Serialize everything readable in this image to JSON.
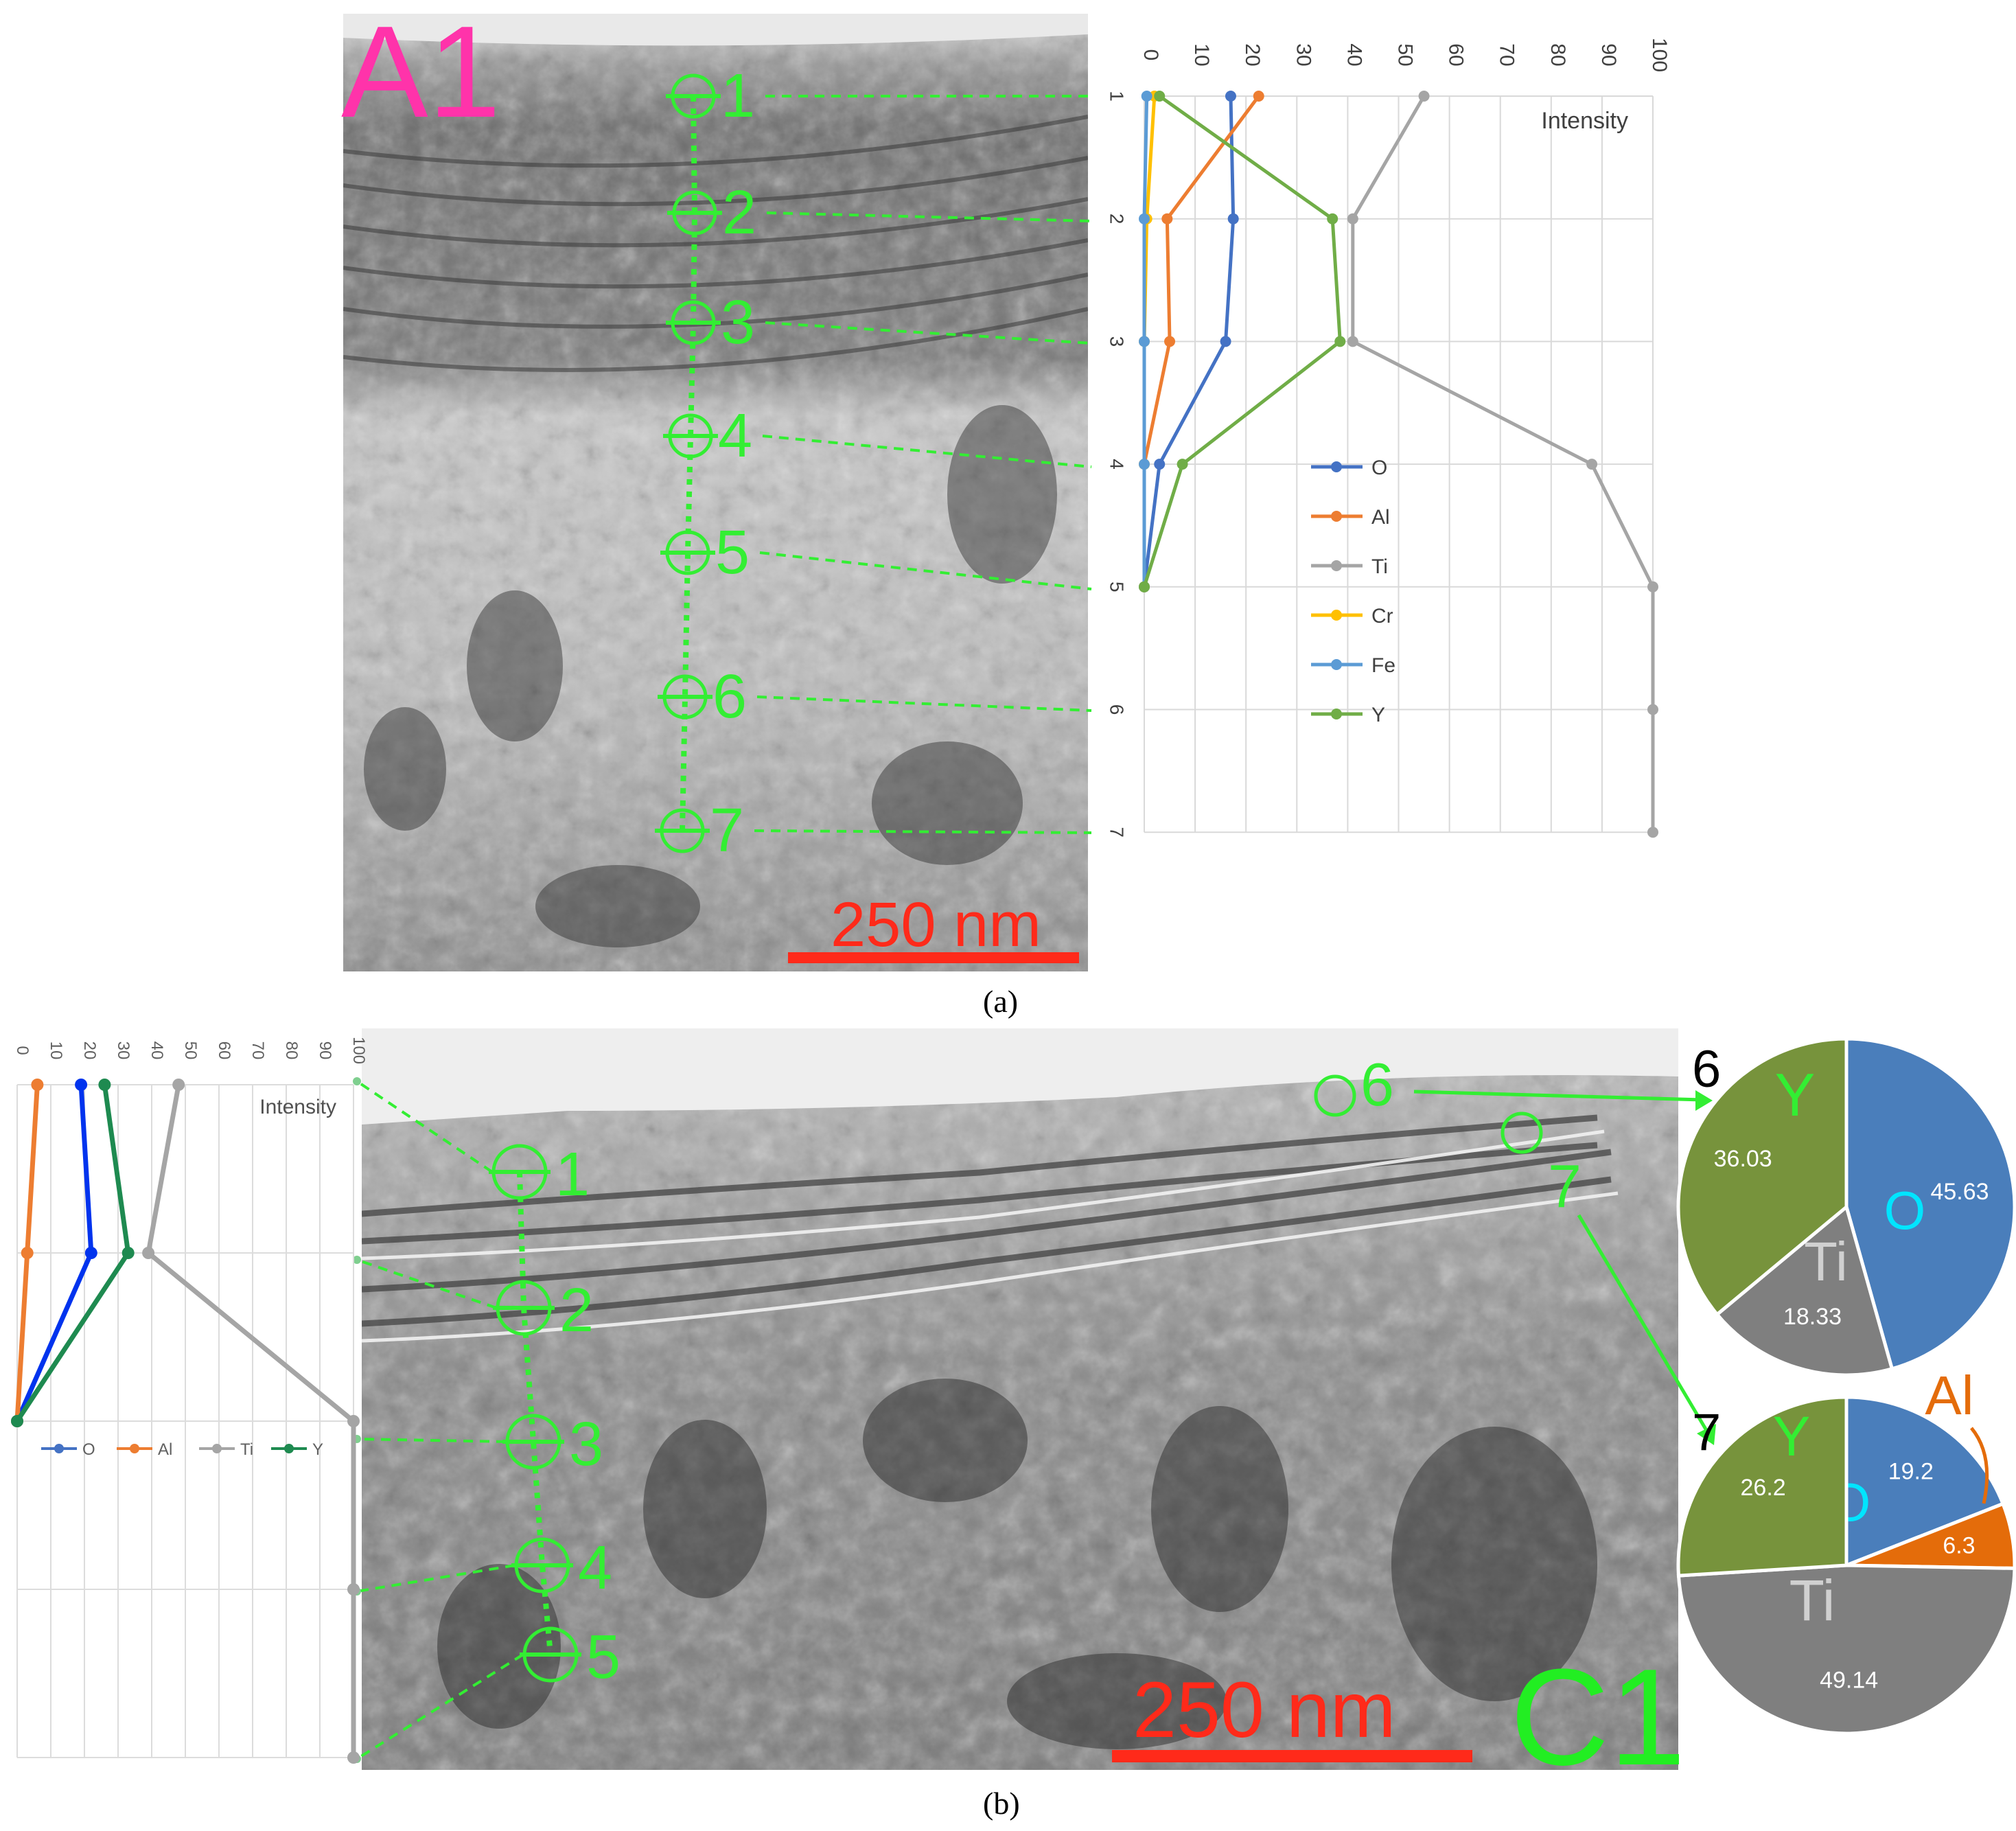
{
  "panel_a": {
    "caption": "(a)",
    "image_label": "A1",
    "scale_bar": "250 nm",
    "point_labels": [
      "1",
      "2",
      "3",
      "4",
      "5",
      "6",
      "7"
    ]
  },
  "panel_b": {
    "caption": "(b)",
    "image_label": "C1",
    "scale_bar": "250 nm",
    "point_labels": [
      "1",
      "2",
      "3",
      "4",
      "5"
    ],
    "spot_labels": [
      "6",
      "7"
    ]
  },
  "colors": {
    "O": "#4472c4",
    "Al": "#ed7d31",
    "Ti": "#a5a5a5",
    "Cr": "#ffc000",
    "Fe": "#5b9bd5",
    "Y": "#70ad47",
    "O_b": "#0033ee",
    "Y_b": "#1e8a50",
    "pie_O": "#4a7ebb",
    "pie_Al": "#e46c0a",
    "pie_Ti": "#7f7f7f",
    "pie_Y": "#77933c",
    "green_marker": "#33ee33",
    "A1_label": "#ff33aa",
    "scale_bar": "#ff2a1a",
    "C1_label": "#22ee22"
  },
  "chart_data": [
    {
      "type": "line",
      "orientation": "vertical",
      "title": "",
      "xlabel": "Intensity",
      "ylabel": "",
      "xlim": [
        0,
        100
      ],
      "x_ticks": [
        "0",
        "10",
        "20",
        "30",
        "40",
        "50",
        "60",
        "70",
        "80",
        "90",
        "100"
      ],
      "categories": [
        "1",
        "2",
        "3",
        "4",
        "5",
        "6",
        "7"
      ],
      "legend_position": "inside-right",
      "grid": true,
      "series": [
        {
          "name": "O",
          "values": [
            17,
            17.5,
            16,
            3,
            0,
            null,
            null
          ]
        },
        {
          "name": "Al",
          "values": [
            22.5,
            4.5,
            5,
            0,
            0,
            null,
            null
          ]
        },
        {
          "name": "Ti",
          "values": [
            55,
            41,
            41,
            88,
            100,
            100,
            100
          ]
        },
        {
          "name": "Cr",
          "values": [
            2,
            0.5,
            0,
            0,
            0,
            null,
            null
          ]
        },
        {
          "name": "Fe",
          "values": [
            0.5,
            0,
            0,
            0,
            0,
            null,
            null
          ]
        },
        {
          "name": "Y",
          "values": [
            3,
            37,
            38.5,
            7.5,
            0,
            null,
            null
          ]
        }
      ]
    },
    {
      "type": "line",
      "orientation": "vertical",
      "title": "",
      "xlabel": "Intensity",
      "ylabel": "",
      "xlim": [
        0,
        100
      ],
      "x_ticks": [
        "0",
        "10",
        "20",
        "30",
        "40",
        "50",
        "60",
        "70",
        "80",
        "90",
        "100"
      ],
      "categories": [
        "1",
        "2",
        "3",
        "4",
        "5"
      ],
      "legend_position": "inside-bottom",
      "grid": true,
      "series": [
        {
          "name": "O",
          "values": [
            19,
            22,
            0,
            null,
            null
          ]
        },
        {
          "name": "Al",
          "values": [
            6,
            3,
            0,
            null,
            null
          ]
        },
        {
          "name": "Ti",
          "values": [
            48,
            39,
            100,
            100,
            100
          ]
        },
        {
          "name": "Y",
          "values": [
            26,
            33,
            0,
            null,
            null
          ]
        }
      ]
    },
    {
      "type": "pie",
      "title": "6",
      "slices": [
        {
          "name": "O",
          "value": 45.63
        },
        {
          "name": "Ti",
          "value": 18.33
        },
        {
          "name": "Y",
          "value": 36.03
        }
      ]
    },
    {
      "type": "pie",
      "title": "7",
      "slices": [
        {
          "name": "O",
          "value": 19.2
        },
        {
          "name": "Al",
          "value": 6.3
        },
        {
          "name": "Ti",
          "value": 49.14
        },
        {
          "name": "Y",
          "value": 26.2
        }
      ]
    }
  ]
}
